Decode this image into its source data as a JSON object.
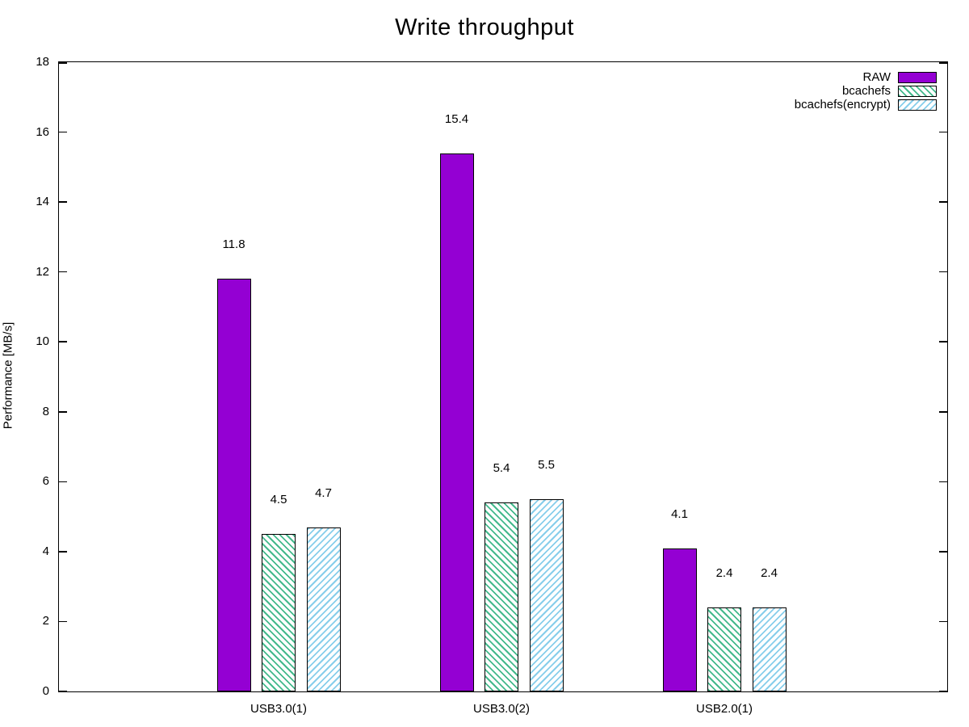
{
  "chart_data": {
    "type": "bar",
    "title": "Write throughput",
    "ylabel": "Performance [MB/s]",
    "xlabel": "",
    "ylim": [
      0,
      18
    ],
    "ytick_step": 2,
    "grid": false,
    "bar_value_labels": true,
    "legend_position": "top-right",
    "categories": [
      "USB3.0(1)",
      "USB3.0(2)",
      "USB2.0(1)"
    ],
    "series": [
      {
        "name": "RAW",
        "values": [
          11.8,
          15.4,
          4.1
        ],
        "color": "#9400d3",
        "pattern": "solid"
      },
      {
        "name": "bcachefs",
        "values": [
          4.5,
          5.4,
          2.4
        ],
        "color": "#43b98c",
        "pattern": "hatch-backslash"
      },
      {
        "name": "bcachefs(encrypt)",
        "values": [
          4.7,
          5.5,
          2.4
        ],
        "color": "#87ceeb",
        "pattern": "hatch-slash"
      }
    ],
    "colors": {
      "axis": "#000000",
      "text": "#000000",
      "background": "#ffffff"
    }
  }
}
